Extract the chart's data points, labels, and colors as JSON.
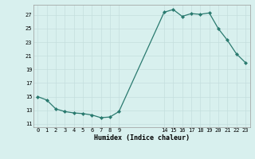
{
  "x": [
    0,
    1,
    2,
    3,
    4,
    5,
    6,
    7,
    8,
    9,
    14,
    15,
    16,
    17,
    18,
    19,
    20,
    21,
    22,
    23
  ],
  "y": [
    15.0,
    14.5,
    13.2,
    12.8,
    12.6,
    12.5,
    12.3,
    11.9,
    12.0,
    12.8,
    27.4,
    27.8,
    26.8,
    27.2,
    27.1,
    27.3,
    25.0,
    23.3,
    21.3,
    20.0
  ],
  "line_color": "#2a7a6f",
  "marker_color": "#2a7a6f",
  "bg_color": "#d8f0ee",
  "grid_color": "#c4dedd",
  "xlabel": "Humidex (Indice chaleur)",
  "xticks": [
    0,
    1,
    2,
    3,
    4,
    5,
    6,
    7,
    8,
    9,
    14,
    15,
    16,
    17,
    18,
    19,
    20,
    21,
    22,
    23
  ],
  "yticks": [
    11,
    13,
    15,
    17,
    19,
    21,
    23,
    25,
    27
  ],
  "ylim": [
    10.5,
    28.5
  ],
  "xlim": [
    -0.5,
    23.5
  ]
}
